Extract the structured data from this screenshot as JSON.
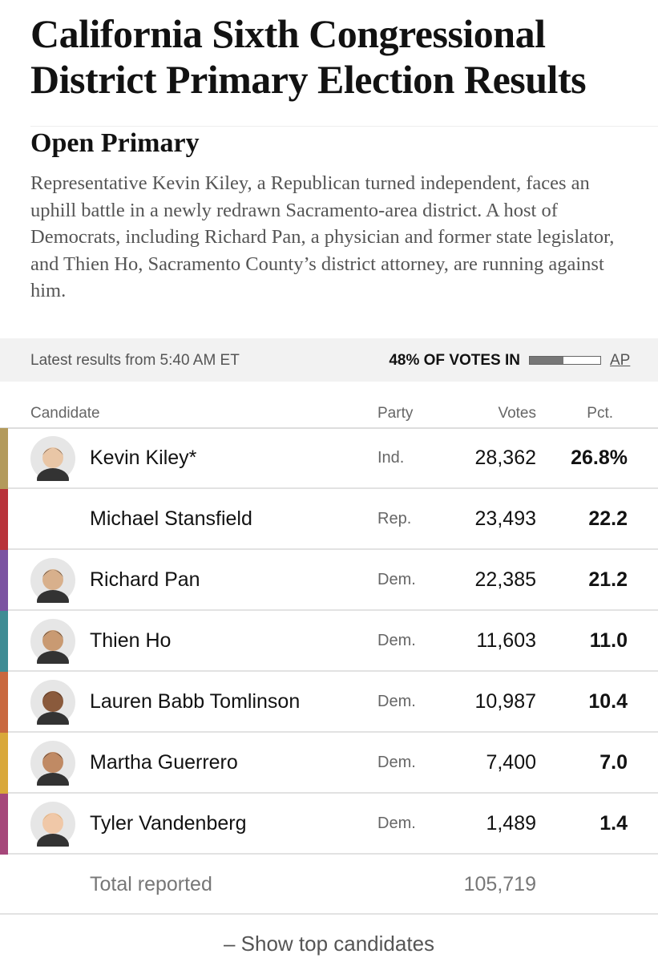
{
  "header": {
    "title": "California Sixth Congressional District Primary Election Results"
  },
  "section": {
    "title": "Open Primary",
    "description": "Representative Kevin Kiley, a Republican turned independent, faces an uphill battle in a newly redrawn Sacramento-area district. A host of Democrats, including Richard Pan, a physician and former state legislator, and Thien Ho, Sacramento County’s district attorney, are running against him."
  },
  "meta": {
    "latest": "Latest results from 5:40 AM ET",
    "votes_in": {
      "value": 48,
      "label": "48% OF VOTES IN"
    },
    "source": "AP"
  },
  "table": {
    "columns": [
      "Candidate",
      "Party",
      "Votes",
      "Pct."
    ],
    "rows": [
      {
        "color": "#b39a5c",
        "name": "Kevin Kiley*",
        "party": "Ind.",
        "votes": "28,362",
        "pct": "26.8%"
      },
      {
        "color": "#b8323a",
        "name": "Michael Stansfield",
        "party": "Rep.",
        "votes": "23,493",
        "pct": "22.2"
      },
      {
        "color": "#7b53a1",
        "name": "Richard Pan",
        "party": "Dem.",
        "votes": "22,385",
        "pct": "21.2"
      },
      {
        "color": "#3f8c94",
        "name": "Thien Ho",
        "party": "Dem.",
        "votes": "11,603",
        "pct": "11.0"
      },
      {
        "color": "#c9683f",
        "name": "Lauren Babb Tomlinson",
        "party": "Dem.",
        "votes": "10,987",
        "pct": "10.4"
      },
      {
        "color": "#d9a83a",
        "name": "Martha Guerrero",
        "party": "Dem.",
        "votes": "7,400",
        "pct": "7.0"
      },
      {
        "color": "#a6477a",
        "name": "Tyler Vandenberg",
        "party": "Dem.",
        "votes": "1,489",
        "pct": "1.4"
      }
    ],
    "total": {
      "label": "Total reported",
      "votes": "105,719"
    }
  },
  "footer": {
    "button": "– Show top candidates"
  }
}
